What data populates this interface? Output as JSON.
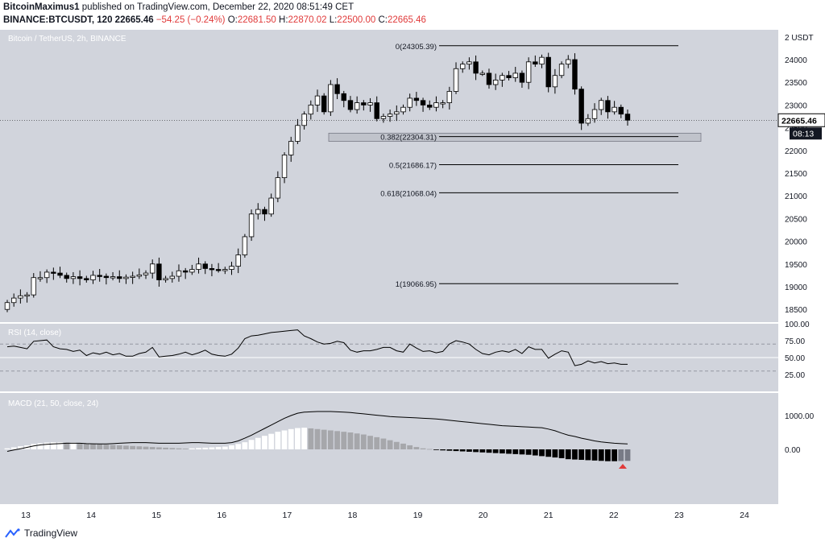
{
  "header": {
    "publisher": "BitcoinMaximus1",
    "published_text": "published on TradingView.com, December 22, 2020 08:51:49 CET",
    "symbol": "BINANCE:BTCUSDT, 120",
    "last": "22665.46",
    "change": "−54.25 (−0.24%)",
    "o_label": "O:",
    "o": "22681.50",
    "h_label": "H:",
    "h": "22870.02",
    "l_label": "L:",
    "l": "22500.00",
    "c_label": "C:",
    "c": "22665.46"
  },
  "footer": {
    "brand": "TradingView"
  },
  "colors": {
    "background": "#d1d4dc",
    "up": "#ffffff",
    "down": "#000000",
    "red": "#e03a3a"
  },
  "chart_data": [
    {
      "type": "candlestick",
      "title": "Bitcoin / TetherUS, 2h, BINANCE",
      "currency_label": "2 USDT",
      "ylim": [
        18000,
        24500
      ],
      "yticks": [
        18500,
        19000,
        19500,
        20000,
        20500,
        21000,
        21500,
        22000,
        22500,
        23000,
        23500,
        24000
      ],
      "x_ticks": [
        "13",
        "14",
        "15",
        "16",
        "17",
        "18",
        "19",
        "20",
        "21",
        "22",
        "23",
        "24"
      ],
      "last_price_label": "22665.46",
      "countdown_label": "08:13",
      "candle_closes": [
        18650,
        18750,
        18800,
        18820,
        19200,
        19200,
        19320,
        19300,
        19250,
        19180,
        19220,
        19180,
        19150,
        19250,
        19230,
        19200,
        19220,
        19180,
        19210,
        19230,
        19260,
        19300,
        19500,
        19150,
        19180,
        19230,
        19350,
        19320,
        19380,
        19500,
        19400,
        19380,
        19370,
        19380,
        19450,
        19700,
        20100,
        20600,
        20700,
        20600,
        20950,
        21400,
        21900,
        22200,
        22550,
        22800,
        23000,
        23200,
        22850,
        23450,
        23250,
        23100,
        22900,
        23050,
        23000,
        23050,
        22700,
        22750,
        22800,
        22850,
        22950,
        23150,
        23100,
        23000,
        22950,
        23050,
        23050,
        23300,
        23800,
        23900,
        23950,
        23700,
        23700,
        23450,
        23550,
        23650,
        23600,
        23700,
        23500,
        23950,
        23900,
        24050,
        23400,
        23650,
        23900,
        24000,
        23350,
        22600,
        22700,
        22900,
        23100,
        22850,
        22950,
        22800,
        22665.46
      ],
      "fibonacci": [
        {
          "label": "0(24305.39)",
          "level": 24305.39
        },
        {
          "label": "0.382(22304.31)",
          "level": 22304.31
        },
        {
          "label": "0.5(21686.17)",
          "level": 21686.17
        },
        {
          "label": "0.618(21068.04)",
          "level": 21068.04
        },
        {
          "label": "1(19066.95)",
          "level": 19066.95
        }
      ],
      "support_zone": [
        22200,
        22380
      ]
    },
    {
      "type": "line",
      "title": "RSI (14, close)",
      "ylim": [
        15,
        100
      ],
      "yticks": [
        100,
        75,
        50,
        25
      ],
      "ytick_labels": [
        "100.00",
        "75.00",
        "50.00",
        "25.00"
      ],
      "bands": [
        30,
        50,
        70
      ],
      "values": [
        66,
        67,
        65,
        63,
        74,
        75,
        76,
        66,
        63,
        62,
        59,
        61,
        53,
        57,
        55,
        58,
        54,
        56,
        52,
        52,
        56,
        58,
        65,
        51,
        52,
        53,
        55,
        58,
        54,
        57,
        61,
        55,
        53,
        52,
        55,
        64,
        78,
        82,
        83,
        85,
        87,
        88,
        89,
        90,
        91,
        82,
        78,
        73,
        70,
        71,
        74,
        72,
        61,
        58,
        60,
        60,
        62,
        65,
        65,
        60,
        58,
        70,
        64,
        59,
        60,
        57,
        59,
        70,
        75,
        73,
        70,
        62,
        56,
        54,
        58,
        60,
        58,
        62,
        56,
        66,
        62,
        62,
        49,
        55,
        60,
        58,
        38,
        40,
        45,
        42,
        44,
        41,
        42,
        40,
        40
      ]
    },
    {
      "type": "histogram+line",
      "title": "MACD (21, 50, close, 24)",
      "ylim": [
        -700,
        1400
      ],
      "yticks": [
        1000,
        0
      ],
      "ytick_labels": [
        "1000.00",
        "0.00"
      ],
      "macd": [
        -60,
        -20,
        20,
        60,
        100,
        130,
        150,
        160,
        170,
        180,
        180,
        180,
        170,
        165,
        160,
        160,
        170,
        180,
        190,
        200,
        200,
        200,
        190,
        180,
        180,
        180,
        180,
        190,
        200,
        200,
        190,
        180,
        180,
        180,
        200,
        250,
        330,
        420,
        520,
        620,
        720,
        820,
        920,
        1000,
        1070,
        1100,
        1110,
        1120,
        1120,
        1120,
        1110,
        1100,
        1090,
        1070,
        1050,
        1030,
        1010,
        990,
        970,
        960,
        950,
        940,
        930,
        920,
        910,
        900,
        880,
        860,
        840,
        820,
        800,
        780,
        760,
        740,
        720,
        700,
        690,
        680,
        670,
        660,
        650,
        640,
        600,
        550,
        480,
        420,
        380,
        330,
        290,
        250,
        220,
        200,
        180,
        170,
        160
      ],
      "histogram": [
        30,
        60,
        90,
        120,
        160,
        180,
        200,
        210,
        210,
        200,
        200,
        190,
        170,
        160,
        150,
        140,
        130,
        120,
        110,
        100,
        90,
        80,
        70,
        60,
        50,
        40,
        30,
        20,
        30,
        40,
        50,
        60,
        70,
        80,
        120,
        160,
        210,
        280,
        340,
        400,
        460,
        520,
        560,
        600,
        630,
        640,
        620,
        600,
        580,
        560,
        540,
        520,
        500,
        470,
        440,
        400,
        360,
        320,
        270,
        220,
        170,
        120,
        70,
        30,
        10,
        -10,
        -30,
        -40,
        -50,
        -60,
        -70,
        -80,
        -90,
        -100,
        -110,
        -120,
        -130,
        -140,
        -150,
        -160,
        -180,
        -200,
        -220,
        -240,
        -260,
        -290,
        -300,
        -310,
        -320,
        -330,
        -340,
        -350,
        -350,
        -345,
        -340
      ]
    }
  ]
}
